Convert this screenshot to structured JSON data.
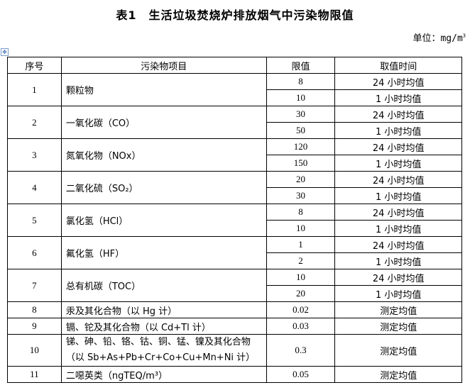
{
  "title": "表1　生活垃圾焚烧炉排放烟气中污染物限值",
  "unit": {
    "label": "单位：mg/m",
    "sup": "3"
  },
  "headers": [
    "序号",
    "污染物项目",
    "限值",
    "取值时间"
  ],
  "rows": [
    {
      "no": "1",
      "name": "颗粒物",
      "limits": [
        {
          "value": "8",
          "time": "24 小时均值"
        },
        {
          "value": "10",
          "time": "1 小时均值"
        }
      ]
    },
    {
      "no": "2",
      "name": "一氧化碳（CO）",
      "limits": [
        {
          "value": "30",
          "time": "24 小时均值"
        },
        {
          "value": "50",
          "time": "1 小时均值"
        }
      ]
    },
    {
      "no": "3",
      "name": "氮氧化物（NOx）",
      "limits": [
        {
          "value": "120",
          "time": "24 小时均值"
        },
        {
          "value": "150",
          "time": "1 小时均值"
        }
      ]
    },
    {
      "no": "4",
      "name": "二氧化硫（SO₂）",
      "limits": [
        {
          "value": "20",
          "time": "24 小时均值"
        },
        {
          "value": "30",
          "time": "1 小时均值"
        }
      ]
    },
    {
      "no": "5",
      "name": "氯化氢（HCl）",
      "limits": [
        {
          "value": "8",
          "time": "24 小时均值"
        },
        {
          "value": "10",
          "time": "1 小时均值"
        }
      ]
    },
    {
      "no": "6",
      "name": "氟化氢（HF）",
      "limits": [
        {
          "value": "1",
          "time": "24 小时均值"
        },
        {
          "value": "2",
          "time": "1 小时均值"
        }
      ]
    },
    {
      "no": "7",
      "name": "总有机碳（TOC）",
      "limits": [
        {
          "value": "10",
          "time": "24 小时均值"
        },
        {
          "value": "20",
          "time": "1 小时均值"
        }
      ]
    },
    {
      "no": "8",
      "name": "汞及其化合物（以 Hg 计）",
      "limits": [
        {
          "value": "0.02",
          "time": "测定均值"
        }
      ]
    },
    {
      "no": "9",
      "name": "镉、铊及其化合物（以 Cd+Tl 计）",
      "limits": [
        {
          "value": "0.03",
          "time": "测定均值"
        }
      ]
    },
    {
      "no": "10",
      "name": "锑、砷、铅、铬、钴、铜、锰、镍及其化合物（以 Sb+As+Pb+Cr+Co+Cu+Mn+Ni 计）",
      "limits": [
        {
          "value": "0.3",
          "time": "测定均值"
        }
      ]
    },
    {
      "no": "11",
      "name": "二噁英类（ngTEQ/m³）",
      "limits": [
        {
          "value": "0.05",
          "time": "测定均值"
        }
      ]
    }
  ]
}
